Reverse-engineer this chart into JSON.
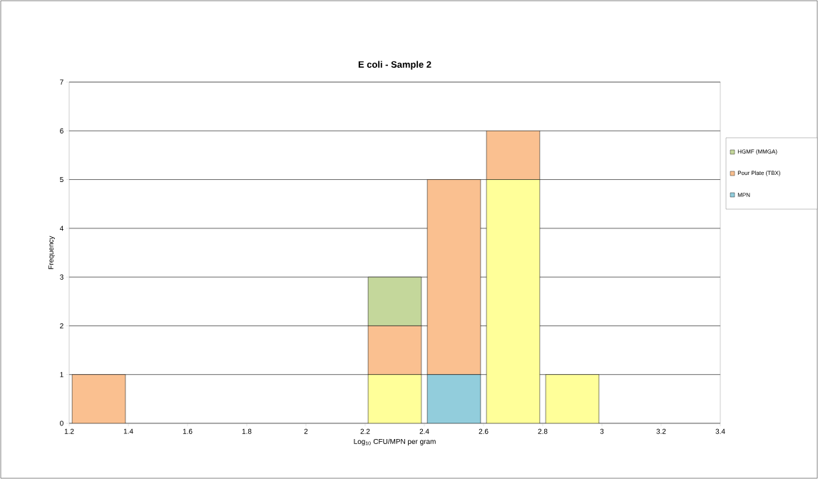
{
  "chart_data": {
    "type": "bar",
    "title": "E coli - Sample 2",
    "xlabel": "Log$_{10}$ CFU/MPN per gram",
    "ylabel": "Frequency",
    "x": [
      1.3,
      2.3,
      2.5,
      2.7,
      2.9
    ],
    "stacked": true,
    "series": [
      {
        "name": "MPN",
        "color": "#92cddc",
        "values": [
          0,
          0,
          1,
          0,
          0
        ]
      },
      {
        "color": "#ffff99",
        "values": [
          0,
          1,
          0,
          5,
          1
        ]
      },
      {
        "name": "Pour Plate (TBX)",
        "color": "#fac090",
        "values": [
          1,
          1,
          4,
          1,
          0
        ]
      },
      {
        "name": "HGMF (MMGA)",
        "color": "#c4d79b",
        "values": [
          0,
          1,
          0,
          0,
          0
        ]
      }
    ],
    "xlim": [
      1.2,
      3.4
    ],
    "xticks": [
      1.2,
      1.4,
      1.6,
      1.8,
      2,
      2.2,
      2.4,
      2.6,
      2.8,
      3,
      3.2,
      3.4
    ],
    "ylim": [
      0,
      7
    ],
    "yticks": [
      0,
      1,
      2,
      3,
      4,
      5,
      6,
      7
    ],
    "grid": "y",
    "legend": "right"
  }
}
